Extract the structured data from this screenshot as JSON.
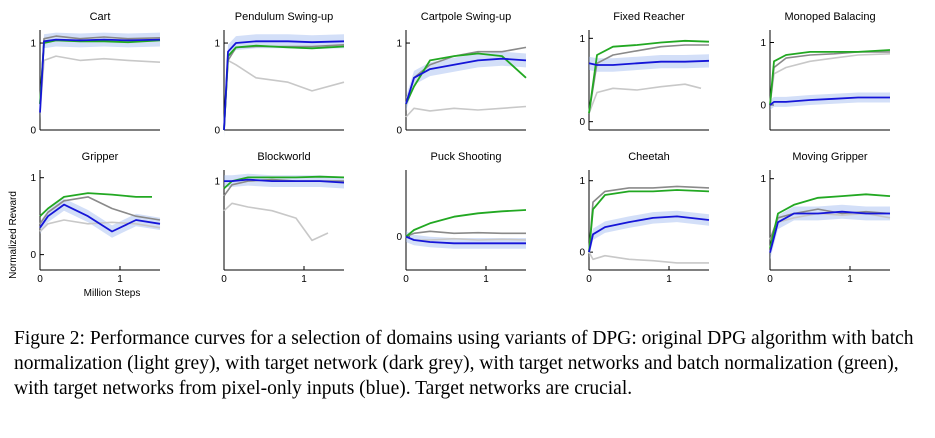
{
  "figure": {
    "ylabel": "Normalized Reward",
    "xlabel": "Million Steps",
    "caption": "Figure 2: Performance curves for a selection of domains using variants of DPG: original DPG algorithm with batch normalization (light grey), with target network (dark grey), with target networks and batch normalization (green), with target networks from pixel-only inputs (blue). Target networks are crucial."
  },
  "colors": {
    "light_grey": "#c8c8c8",
    "dark_grey": "#8a8a8a",
    "green": "#22a822",
    "blue": "#1515d8",
    "blue_band": "#9db8f0"
  },
  "chart_data": [
    {
      "type": "line",
      "title": "Cart",
      "xlim": [
        0,
        1.5
      ],
      "ylim": [
        0,
        1.15
      ],
      "xticks": [],
      "yticks": [
        0,
        1
      ],
      "ytick_labels": [
        "0",
        "1"
      ],
      "series": [
        {
          "color": "light_grey",
          "x": [
            0,
            0.05,
            0.2,
            0.5,
            0.8,
            1.1,
            1.5
          ],
          "y": [
            0.2,
            0.8,
            0.85,
            0.8,
            0.82,
            0.8,
            0.78
          ]
        },
        {
          "color": "dark_grey",
          "x": [
            0,
            0.05,
            0.2,
            0.5,
            0.8,
            1.1,
            1.5
          ],
          "y": [
            0.3,
            1.05,
            1.08,
            1.05,
            1.07,
            1.05,
            1.06
          ]
        },
        {
          "color": "green",
          "x": [
            0,
            0.05,
            0.2,
            0.5,
            0.8,
            1.1,
            1.5
          ],
          "y": [
            0.3,
            1.0,
            1.03,
            1.02,
            1.02,
            1.01,
            1.03
          ]
        },
        {
          "color": "blue",
          "x": [
            0,
            0.05,
            0.2,
            0.5,
            0.8,
            1.1,
            1.5
          ],
          "y": [
            0.2,
            1.02,
            1.04,
            1.03,
            1.04,
            1.03,
            1.04
          ]
        }
      ]
    },
    {
      "type": "line",
      "title": "Pendulum Swing-up",
      "xlim": [
        0,
        1.5
      ],
      "ylim": [
        0,
        1.15
      ],
      "xticks": [],
      "yticks": [
        0,
        1
      ],
      "ytick_labels": [
        "0",
        "1"
      ],
      "series": [
        {
          "color": "light_grey",
          "x": [
            0,
            0.05,
            0.15,
            0.4,
            0.8,
            1.1,
            1.5
          ],
          "y": [
            0.0,
            0.8,
            0.75,
            0.6,
            0.55,
            0.45,
            0.55
          ]
        },
        {
          "color": "dark_grey",
          "x": [
            0,
            0.05,
            0.15,
            0.4,
            0.8,
            1.1,
            1.5
          ],
          "y": [
            0.0,
            0.8,
            0.95,
            0.96,
            0.96,
            0.96,
            0.98
          ]
        },
        {
          "color": "green",
          "x": [
            0,
            0.05,
            0.15,
            0.4,
            0.8,
            1.1,
            1.5
          ],
          "y": [
            0.0,
            0.85,
            0.95,
            0.97,
            0.95,
            0.94,
            0.96
          ]
        },
        {
          "color": "blue",
          "x": [
            0,
            0.05,
            0.15,
            0.4,
            0.8,
            1.1,
            1.5
          ],
          "y": [
            0.0,
            0.9,
            1.0,
            1.02,
            1.02,
            1.01,
            1.02
          ]
        }
      ]
    },
    {
      "type": "line",
      "title": "Cartpole Swing-up",
      "xlim": [
        0,
        1.5
      ],
      "ylim": [
        0,
        1.15
      ],
      "xticks": [],
      "yticks": [
        0,
        1
      ],
      "ytick_labels": [
        "0",
        "1"
      ],
      "series": [
        {
          "color": "light_grey",
          "x": [
            0,
            0.1,
            0.3,
            0.6,
            0.9,
            1.2,
            1.5
          ],
          "y": [
            0.15,
            0.25,
            0.22,
            0.25,
            0.23,
            0.25,
            0.27
          ]
        },
        {
          "color": "dark_grey",
          "x": [
            0,
            0.1,
            0.3,
            0.6,
            0.9,
            1.2,
            1.5
          ],
          "y": [
            0.3,
            0.6,
            0.75,
            0.85,
            0.9,
            0.9,
            0.95
          ]
        },
        {
          "color": "green",
          "x": [
            0,
            0.1,
            0.3,
            0.6,
            0.9,
            1.2,
            1.5
          ],
          "y": [
            0.3,
            0.5,
            0.8,
            0.85,
            0.88,
            0.85,
            0.6
          ]
        },
        {
          "color": "blue",
          "x": [
            0,
            0.1,
            0.3,
            0.6,
            0.9,
            1.2,
            1.5
          ],
          "y": [
            0.3,
            0.6,
            0.7,
            0.75,
            0.8,
            0.82,
            0.8
          ]
        }
      ]
    },
    {
      "type": "line",
      "title": "Fixed Reacher",
      "xlim": [
        0,
        1.5
      ],
      "ylim": [
        -0.1,
        1.1
      ],
      "xticks": [],
      "yticks": [
        0,
        1
      ],
      "ytick_labels": [
        "0",
        "1"
      ],
      "series": [
        {
          "color": "light_grey",
          "x": [
            0,
            0.1,
            0.3,
            0.6,
            0.9,
            1.2,
            1.4
          ],
          "y": [
            0.1,
            0.35,
            0.4,
            0.38,
            0.42,
            0.45,
            0.4
          ]
        },
        {
          "color": "dark_grey",
          "x": [
            0,
            0.1,
            0.3,
            0.6,
            0.9,
            1.2,
            1.5
          ],
          "y": [
            0.1,
            0.7,
            0.8,
            0.85,
            0.9,
            0.92,
            0.92
          ]
        },
        {
          "color": "green",
          "x": [
            0,
            0.1,
            0.3,
            0.6,
            0.9,
            1.2,
            1.5
          ],
          "y": [
            0.1,
            0.8,
            0.9,
            0.92,
            0.95,
            0.97,
            0.96
          ]
        },
        {
          "color": "blue",
          "x": [
            0,
            0.1,
            0.3,
            0.6,
            0.9,
            1.2,
            1.5
          ],
          "y": [
            0.7,
            0.68,
            0.68,
            0.7,
            0.72,
            0.72,
            0.73
          ]
        }
      ]
    },
    {
      "type": "line",
      "title": "Monoped Balacing",
      "xlim": [
        0,
        1.5
      ],
      "ylim": [
        -0.4,
        1.2
      ],
      "xticks": [],
      "yticks": [
        0,
        1
      ],
      "ytick_labels": [
        "0",
        "1"
      ],
      "series": [
        {
          "color": "light_grey",
          "x": [
            0,
            0.05,
            0.2,
            0.5,
            0.8,
            1.1,
            1.5
          ],
          "y": [
            0.0,
            0.5,
            0.6,
            0.7,
            0.75,
            0.8,
            0.82
          ]
        },
        {
          "color": "dark_grey",
          "x": [
            0,
            0.05,
            0.2,
            0.5,
            0.8,
            1.1,
            1.5
          ],
          "y": [
            0.0,
            0.6,
            0.75,
            0.8,
            0.82,
            0.85,
            0.85
          ]
        },
        {
          "color": "green",
          "x": [
            0,
            0.05,
            0.2,
            0.5,
            0.8,
            1.1,
            1.5
          ],
          "y": [
            0.0,
            0.7,
            0.8,
            0.85,
            0.85,
            0.85,
            0.88
          ]
        },
        {
          "color": "blue",
          "x": [
            0,
            0.05,
            0.2,
            0.5,
            0.8,
            1.1,
            1.5
          ],
          "y": [
            0.0,
            0.05,
            0.05,
            0.08,
            0.1,
            0.12,
            0.12
          ]
        }
      ]
    },
    {
      "type": "line",
      "title": "Gripper",
      "xlim": [
        0,
        1.5
      ],
      "ylim": [
        -0.2,
        1.1
      ],
      "xticks": [
        0,
        1
      ],
      "xtick_labels": [
        "0",
        "1"
      ],
      "yticks": [
        0,
        1
      ],
      "ytick_labels": [
        "0",
        "1"
      ],
      "series": [
        {
          "color": "light_grey",
          "x": [
            0,
            0.1,
            0.3,
            0.6,
            0.9,
            1.2,
            1.5
          ],
          "y": [
            0.3,
            0.4,
            0.45,
            0.4,
            0.42,
            0.4,
            0.35
          ]
        },
        {
          "color": "dark_grey",
          "x": [
            0,
            0.1,
            0.3,
            0.6,
            0.9,
            1.2,
            1.5
          ],
          "y": [
            0.4,
            0.55,
            0.7,
            0.75,
            0.6,
            0.5,
            0.45
          ]
        },
        {
          "color": "green",
          "x": [
            0,
            0.1,
            0.3,
            0.6,
            0.9,
            1.2,
            1.4
          ],
          "y": [
            0.5,
            0.6,
            0.75,
            0.8,
            0.78,
            0.75,
            0.75
          ]
        },
        {
          "color": "blue",
          "x": [
            0,
            0.1,
            0.3,
            0.6,
            0.9,
            1.2,
            1.5
          ],
          "y": [
            0.35,
            0.5,
            0.65,
            0.5,
            0.3,
            0.45,
            0.4
          ]
        }
      ]
    },
    {
      "type": "line",
      "title": "Blockworld",
      "xlim": [
        0,
        1.5
      ],
      "ylim": [
        -0.2,
        1.15
      ],
      "xticks": [
        0,
        1
      ],
      "xtick_labels": [
        "0",
        "1"
      ],
      "yticks": [
        1
      ],
      "ytick_labels": [
        "1"
      ],
      "series": [
        {
          "color": "light_grey",
          "x": [
            0,
            0.1,
            0.3,
            0.6,
            0.9,
            1.1,
            1.3
          ],
          "y": [
            0.6,
            0.7,
            0.65,
            0.6,
            0.5,
            0.2,
            0.3
          ]
        },
        {
          "color": "dark_grey",
          "x": [
            0,
            0.1,
            0.3,
            0.6,
            0.9,
            1.2,
            1.5
          ],
          "y": [
            0.8,
            0.95,
            1.0,
            1.02,
            1.0,
            1.0,
            1.0
          ]
        },
        {
          "color": "green",
          "x": [
            0,
            0.1,
            0.3,
            0.6,
            0.9,
            1.2,
            1.5
          ],
          "y": [
            0.9,
            1.0,
            1.05,
            1.05,
            1.05,
            1.06,
            1.05
          ]
        },
        {
          "color": "blue",
          "x": [
            0,
            0.1,
            0.3,
            0.6,
            0.9,
            1.2,
            1.5
          ],
          "y": [
            1.0,
            1.0,
            1.02,
            1.0,
            1.0,
            1.0,
            0.98
          ]
        }
      ]
    },
    {
      "type": "line",
      "title": "Puck Shooting",
      "xlim": [
        0,
        1.5
      ],
      "ylim": [
        -0.5,
        1.0
      ],
      "xticks": [
        0,
        1
      ],
      "xtick_labels": [
        "0",
        "1"
      ],
      "yticks": [
        0
      ],
      "ytick_labels": [
        "0"
      ],
      "series": [
        {
          "color": "light_grey",
          "x": [
            0,
            0.1,
            0.3,
            0.6,
            0.9,
            1.2,
            1.5
          ],
          "y": [
            0.0,
            -0.05,
            -0.05,
            -0.03,
            -0.05,
            -0.04,
            -0.05
          ]
        },
        {
          "color": "dark_grey",
          "x": [
            0,
            0.1,
            0.3,
            0.6,
            0.9,
            1.2,
            1.5
          ],
          "y": [
            0.0,
            0.05,
            0.08,
            0.05,
            0.06,
            0.05,
            0.05
          ]
        },
        {
          "color": "green",
          "x": [
            0,
            0.1,
            0.3,
            0.6,
            0.9,
            1.2,
            1.5
          ],
          "y": [
            0.0,
            0.1,
            0.2,
            0.3,
            0.35,
            0.38,
            0.4
          ]
        },
        {
          "color": "blue",
          "x": [
            0,
            0.1,
            0.3,
            0.6,
            0.9,
            1.2,
            1.5
          ],
          "y": [
            0.0,
            -0.05,
            -0.08,
            -0.1,
            -0.1,
            -0.1,
            -0.1
          ]
        }
      ]
    },
    {
      "type": "line",
      "title": "Cheetah",
      "xlim": [
        0,
        1.5
      ],
      "ylim": [
        -0.25,
        1.15
      ],
      "xticks": [
        0,
        1
      ],
      "xtick_labels": [
        "0",
        "1"
      ],
      "yticks": [
        0,
        1
      ],
      "ytick_labels": [
        "0",
        "1"
      ],
      "series": [
        {
          "color": "light_grey",
          "x": [
            0,
            0.05,
            0.2,
            0.5,
            0.8,
            1.1,
            1.5
          ],
          "y": [
            0.0,
            -0.1,
            -0.05,
            -0.1,
            -0.12,
            -0.15,
            -0.15
          ]
        },
        {
          "color": "dark_grey",
          "x": [
            0,
            0.05,
            0.2,
            0.5,
            0.8,
            1.1,
            1.5
          ],
          "y": [
            0.0,
            0.7,
            0.85,
            0.9,
            0.9,
            0.92,
            0.9
          ]
        },
        {
          "color": "green",
          "x": [
            0,
            0.05,
            0.2,
            0.5,
            0.8,
            1.1,
            1.5
          ],
          "y": [
            0.0,
            0.6,
            0.8,
            0.85,
            0.85,
            0.87,
            0.85
          ]
        },
        {
          "color": "blue",
          "x": [
            0,
            0.05,
            0.2,
            0.5,
            0.8,
            1.1,
            1.5
          ],
          "y": [
            0.0,
            0.25,
            0.35,
            0.42,
            0.48,
            0.5,
            0.45
          ]
        }
      ]
    },
    {
      "type": "line",
      "title": "Moving Gripper",
      "xlim": [
        0,
        1.5
      ],
      "ylim": [
        -0.05,
        1.1
      ],
      "xticks": [
        0,
        1
      ],
      "xtick_labels": [
        "0",
        "1"
      ],
      "yticks": [
        1
      ],
      "ytick_labels": [
        "1"
      ],
      "series": [
        {
          "color": "light_grey",
          "x": [
            0,
            0.1,
            0.3,
            0.6,
            0.9,
            1.2,
            1.5
          ],
          "y": [
            0.3,
            0.5,
            0.55,
            0.6,
            0.58,
            0.6,
            0.55
          ]
        },
        {
          "color": "dark_grey",
          "x": [
            0,
            0.1,
            0.3,
            0.6,
            0.9,
            1.2,
            1.5
          ],
          "y": [
            0.3,
            0.55,
            0.6,
            0.65,
            0.6,
            0.62,
            0.6
          ]
        },
        {
          "color": "green",
          "x": [
            0,
            0.1,
            0.3,
            0.6,
            0.9,
            1.2,
            1.5
          ],
          "y": [
            0.2,
            0.6,
            0.7,
            0.78,
            0.8,
            0.82,
            0.8
          ]
        },
        {
          "color": "blue",
          "x": [
            0,
            0.1,
            0.3,
            0.6,
            0.9,
            1.2,
            1.5
          ],
          "y": [
            0.15,
            0.5,
            0.6,
            0.6,
            0.62,
            0.6,
            0.6
          ]
        }
      ]
    }
  ]
}
